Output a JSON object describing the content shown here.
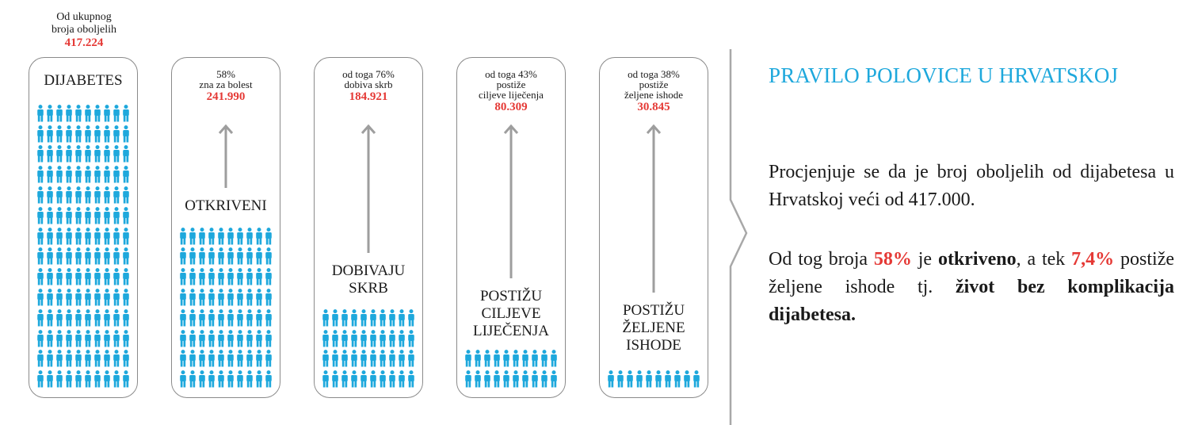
{
  "header": {
    "line1": "Od ukupnog",
    "line2": "broja oboljelih",
    "value": "417.224"
  },
  "cards": [
    {
      "title_lines": [
        "DIJABETES"
      ],
      "info_lines": [],
      "value": "",
      "icon_rows": 14
    },
    {
      "title_lines": [
        "OTKRIVENI"
      ],
      "info_lines": [
        "58%",
        "zna za bolest"
      ],
      "value": "241.990",
      "icon_rows": 8
    },
    {
      "title_lines": [
        "DOBIVAJU",
        "SKRB"
      ],
      "info_lines": [
        "od toga 76%",
        "dobiva skrb"
      ],
      "value": "184.921",
      "icon_rows": 4
    },
    {
      "title_lines": [
        "POSTIŽU",
        "CILJEVE",
        "LIJEČENJA"
      ],
      "info_lines": [
        "od toga 43%",
        "postiže",
        "ciljeve liječenja"
      ],
      "value": "80.309",
      "icon_rows": 2
    },
    {
      "title_lines": [
        "POSTIŽU",
        "ŽELJENE",
        "ISHODE"
      ],
      "info_lines": [
        "od toga 38%",
        "postiže",
        "željene ishode"
      ],
      "value": "30.845",
      "icon_rows": 1
    }
  ],
  "right": {
    "title": "PRAVILO POLOVICE U HRVATSKOJ",
    "p1": "Procjenjuje se da je broj oboljelih od dijabetesa u Hrvatskoj veći od 417.000.",
    "p2": {
      "t1": "Od tog broja ",
      "pct1": "58%",
      "t2": " je ",
      "b1": "otkriveno",
      "t3": ", a tek ",
      "pct2": "7,4%",
      "t4": " postiže željene ishode tj. ",
      "b2": "život bez komplikacija dijabetesa."
    }
  },
  "colors": {
    "icon": "#1ea8dc",
    "highlight": "#e53935",
    "arrow": "#9e9e9e",
    "border": "#8a8a8a"
  }
}
